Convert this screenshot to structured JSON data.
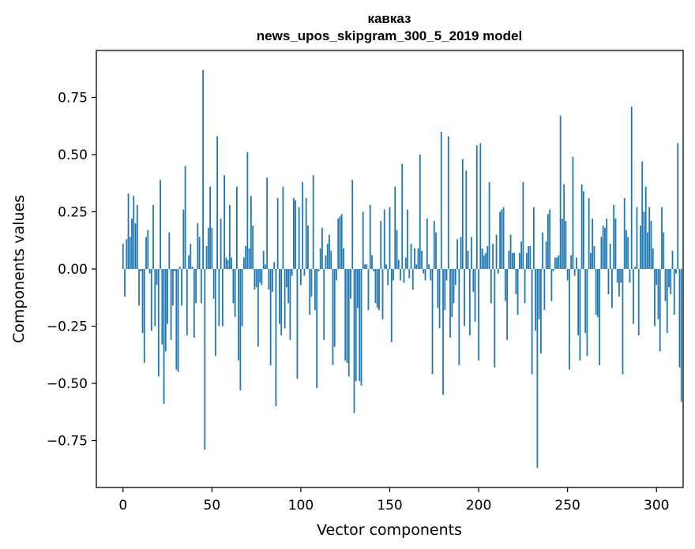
{
  "chart_data": {
    "type": "bar",
    "title_line1": "кавказ",
    "title_line2": "news_upos_skipgram_300_5_2019 model",
    "xlabel": "Vector components",
    "ylabel": "Components values",
    "xlim": [
      -15,
      315
    ],
    "ylim": [
      -0.955,
      0.955
    ],
    "xticks": [
      0,
      50,
      100,
      150,
      200,
      250,
      300
    ],
    "xtick_labels": [
      "0",
      "50",
      "100",
      "150",
      "200",
      "250",
      "300"
    ],
    "yticks": [
      -0.75,
      -0.5,
      -0.25,
      0.0,
      0.25,
      0.5,
      0.75
    ],
    "ytick_labels": [
      "−0.75",
      "−0.50",
      "−0.25",
      "0.00",
      "0.25",
      "0.50",
      "0.75"
    ],
    "bar_color": "#1f77b4",
    "values": [
      0.11,
      -0.12,
      0.13,
      0.33,
      0.14,
      0.22,
      0.32,
      0.2,
      0.28,
      -0.16,
      -0.01,
      -0.28,
      -0.41,
      0.14,
      0.17,
      -0.02,
      -0.27,
      0.28,
      -0.25,
      -0.07,
      -0.47,
      0.39,
      -0.33,
      -0.59,
      -0.36,
      -0.24,
      0.16,
      -0.31,
      -0.16,
      -0.01,
      -0.44,
      -0.45,
      0.01,
      -0.16,
      0.26,
      0.45,
      -0.29,
      0.06,
      0.11,
      0.01,
      -0.3,
      -0.15,
      0.2,
      0.14,
      -0.15,
      0.87,
      -0.79,
      0.1,
      0.18,
      0.36,
      0.18,
      -0.13,
      -0.38,
      0.58,
      -0.25,
      0.22,
      -0.25,
      0.41,
      0.05,
      0.04,
      0.28,
      0.05,
      -0.15,
      -0.21,
      0.36,
      -0.4,
      -0.53,
      -0.25,
      0.05,
      0.1,
      0.51,
      0.09,
      0.32,
      0.19,
      -0.09,
      -0.08,
      -0.34,
      -0.06,
      -0.07,
      0.08,
      0.02,
      0.4,
      -0.09,
      -0.42,
      -0.1,
      0.03,
      -0.6,
      0.31,
      -0.24,
      -0.29,
      0.36,
      -0.26,
      -0.08,
      -0.15,
      -0.31,
      -0.03,
      0.31,
      0.3,
      -0.48,
      0.27,
      -0.07,
      0.38,
      -0.03,
      0.31,
      0.19,
      -0.2,
      -0.12,
      0.41,
      -0.18,
      -0.52,
      -0.01,
      0.09,
      0.18,
      -0.31,
      0.06,
      0.11,
      0.15,
      0.08,
      -0.42,
      -0.34,
      -0.05,
      0.22,
      0.23,
      0.24,
      0.09,
      -0.4,
      -0.41,
      -0.47,
      -0.13,
      0.39,
      -0.63,
      -0.49,
      -0.17,
      -0.49,
      -0.51,
      0.25,
      0.02,
      0.02,
      -0.18,
      0.28,
      0.06,
      -0.01,
      -0.15,
      -0.17,
      -0.18,
      0.21,
      -0.22,
      0.26,
      0.02,
      -0.07,
      0.27,
      -0.32,
      -0.05,
      0.36,
      0.17,
      0.04,
      -0.05,
      0.46,
      -0.06,
      0.05,
      0.26,
      -0.04,
      0.11,
      -0.09,
      0.09,
      0.02,
      0.09,
      0.5,
      0.08,
      -0.02,
      -0.05,
      0.22,
      0.02,
      -0.05,
      -0.46,
      0.21,
      0.16,
      -0.17,
      -0.26,
      0.6,
      -0.55,
      -0.18,
      -0.05,
      0.58,
      -0.3,
      -0.21,
      -0.15,
      -0.07,
      0.13,
      -0.42,
      0.14,
      0.48,
      -0.25,
      0.43,
      0.08,
      -0.29,
      0.14,
      -0.1,
      -0.23,
      0.54,
      -0.4,
      0.55,
      0.09,
      0.06,
      0.07,
      0.1,
      0.38,
      -0.15,
      0.11,
      -0.43,
      0.15,
      -0.02,
      0.25,
      0.26,
      0.27,
      -0.14,
      -0.31,
      0.08,
      0.15,
      0.07,
      0.07,
      -0.11,
      -0.2,
      0.07,
      0.12,
      0.38,
      -0.15,
      0.07,
      0.1,
      0.1,
      -0.46,
      0.27,
      -0.27,
      -0.87,
      -0.22,
      -0.37,
      0.16,
      -0.18,
      0.12,
      0.24,
      0.26,
      -0.14,
      -0.01,
      0.05,
      0.05,
      0.06,
      0.67,
      0.22,
      0.37,
      0.21,
      -0.05,
      -0.44,
      0.06,
      0.49,
      -0.03,
      0.05,
      -0.29,
      -0.4,
      0.37,
      0.34,
      -0.28,
      -0.38,
      0.31,
      0.07,
      0.22,
      0.1,
      -0.2,
      -0.21,
      -0.42,
      0.14,
      0.19,
      0.18,
      0.22,
      -0.11,
      0.11,
      -0.17,
      0.28,
      0.22,
      -0.06,
      -0.12,
      -0.06,
      -0.46,
      0.31,
      0.17,
      0.14,
      -0.06,
      0.71,
      -0.24,
      0.01,
      0.27,
      -0.29,
      0.19,
      0.47,
      0.25,
      0.36,
      0.16,
      0.27,
      0.21,
      0.09,
      -0.25,
      -0.07,
      -0.22,
      -0.36,
      0.27,
      0.16,
      -0.14,
      -0.28,
      -0.08,
      -0.11,
      0.08,
      -0.2,
      -0.02,
      0.55,
      -0.43,
      -0.58
    ],
    "grid": false
  }
}
